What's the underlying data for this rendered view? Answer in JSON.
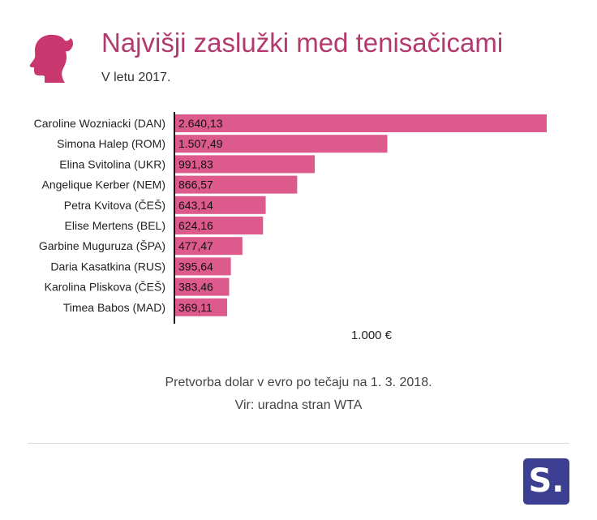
{
  "header": {
    "title": "Najvišji zaslužki med tenisačicami",
    "subtitle": "V letu 2017."
  },
  "chart_data": {
    "type": "bar",
    "orientation": "horizontal",
    "categories": [
      "Caroline Wozniacki (DAN)",
      "Simona Halep (ROM)",
      "Elina Svitolina (UKR)",
      "Angelique Kerber (NEM)",
      "Petra Kvitova (ČEŠ)",
      "Elise Mertens (BEL)",
      "Garbine Muguruza (ŠPA)",
      "Daria Kasatkina (RUS)",
      "Karolina Pliskova (ČEŠ)",
      "Timea Babos (MAD)"
    ],
    "values": [
      2640.13,
      1507.49,
      991.83,
      866.57,
      643.14,
      624.16,
      477.47,
      395.64,
      383.46,
      369.11
    ],
    "value_labels": [
      "2.640,13",
      "1.507,49",
      "991,83",
      "866,57",
      "643,14",
      "624,16",
      "477,47",
      "395,64",
      "383,46",
      "369,11"
    ],
    "unit_label": "1.000 €",
    "xlim": [
      0,
      2640.13
    ],
    "bar_color": "#dd5a8c"
  },
  "footnotes": [
    "Pretvorba dolar v evro po tečaju na 1. 3. 2018.",
    "Vir: uradna stran WTA"
  ],
  "logo": {
    "text": "S.",
    "color": "#3d3f92"
  },
  "icons": {
    "header_icon": "woman-silhouette-icon"
  }
}
